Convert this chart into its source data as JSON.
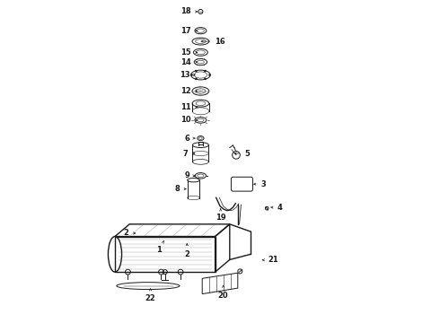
{
  "bg_color": "#ffffff",
  "line_color": "#1a1a1a",
  "gray_color": "#666666",
  "parts_labels": {
    "18": [
      0.432,
      0.964,
      -0.038,
      0.0
    ],
    "17": [
      0.432,
      0.905,
      -0.038,
      0.0
    ],
    "16": [
      0.432,
      0.872,
      0.068,
      0.0
    ],
    "15": [
      0.432,
      0.838,
      -0.038,
      0.0
    ],
    "14": [
      0.432,
      0.808,
      -0.038,
      0.0
    ],
    "13": [
      0.432,
      0.768,
      -0.042,
      0.0
    ],
    "12": [
      0.432,
      0.718,
      -0.038,
      0.0
    ],
    "11": [
      0.432,
      0.668,
      -0.038,
      0.0
    ],
    "10": [
      0.432,
      0.628,
      -0.038,
      0.0
    ],
    "6": [
      0.432,
      0.572,
      -0.034,
      0.0
    ],
    "7": [
      0.432,
      0.525,
      -0.038,
      0.0
    ],
    "5": [
      0.535,
      0.525,
      0.048,
      0.0
    ],
    "9": [
      0.432,
      0.456,
      -0.034,
      0.0
    ],
    "8": [
      0.405,
      0.415,
      -0.038,
      0.0
    ],
    "3": [
      0.595,
      0.43,
      0.038,
      0.0
    ],
    "19": [
      0.502,
      0.355,
      0.0,
      -0.028
    ],
    "4": [
      0.648,
      0.358,
      0.038,
      0.0
    ],
    "2a": [
      0.248,
      0.278,
      -0.038,
      0.0
    ],
    "1": [
      0.33,
      0.262,
      -0.018,
      -0.035
    ],
    "2b": [
      0.398,
      0.248,
      0.0,
      -0.035
    ],
    "22": [
      0.285,
      0.108,
      0.0,
      -0.032
    ],
    "20": [
      0.51,
      0.118,
      0.0,
      -0.032
    ],
    "21": [
      0.622,
      0.195,
      0.042,
      0.0
    ]
  }
}
